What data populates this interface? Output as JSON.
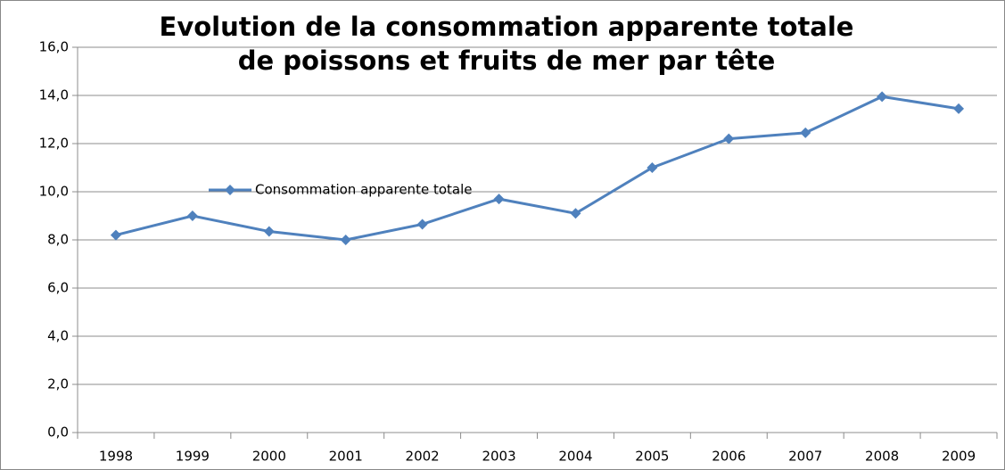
{
  "chart_data": {
    "type": "line",
    "title": [
      "Evolution de la consommation apparente  totale",
      "de poissons et fruits de mer par tête"
    ],
    "categories": [
      "1998",
      "1999",
      "2000",
      "2001",
      "2002",
      "2003",
      "2004",
      "2005",
      "2006",
      "2007",
      "2008",
      "2009"
    ],
    "series": [
      {
        "name": "Consommation apparente totale",
        "color": "#4f81bd",
        "values": [
          8.2,
          9.0,
          8.35,
          8.0,
          8.65,
          9.7,
          9.1,
          11.0,
          12.2,
          12.45,
          13.95,
          13.45
        ]
      }
    ],
    "ylim": [
      0,
      16
    ],
    "yticks": [
      {
        "value": 0,
        "label": "0,0"
      },
      {
        "value": 2,
        "label": "2,0"
      },
      {
        "value": 4,
        "label": "4,0"
      },
      {
        "value": 6,
        "label": "6,0"
      },
      {
        "value": 8,
        "label": "8,0"
      },
      {
        "value": 10,
        "label": "10,0"
      },
      {
        "value": 12,
        "label": "12,0"
      },
      {
        "value": 14,
        "label": "14,0"
      },
      {
        "value": 16,
        "label": "16,0"
      }
    ],
    "grid": true
  }
}
